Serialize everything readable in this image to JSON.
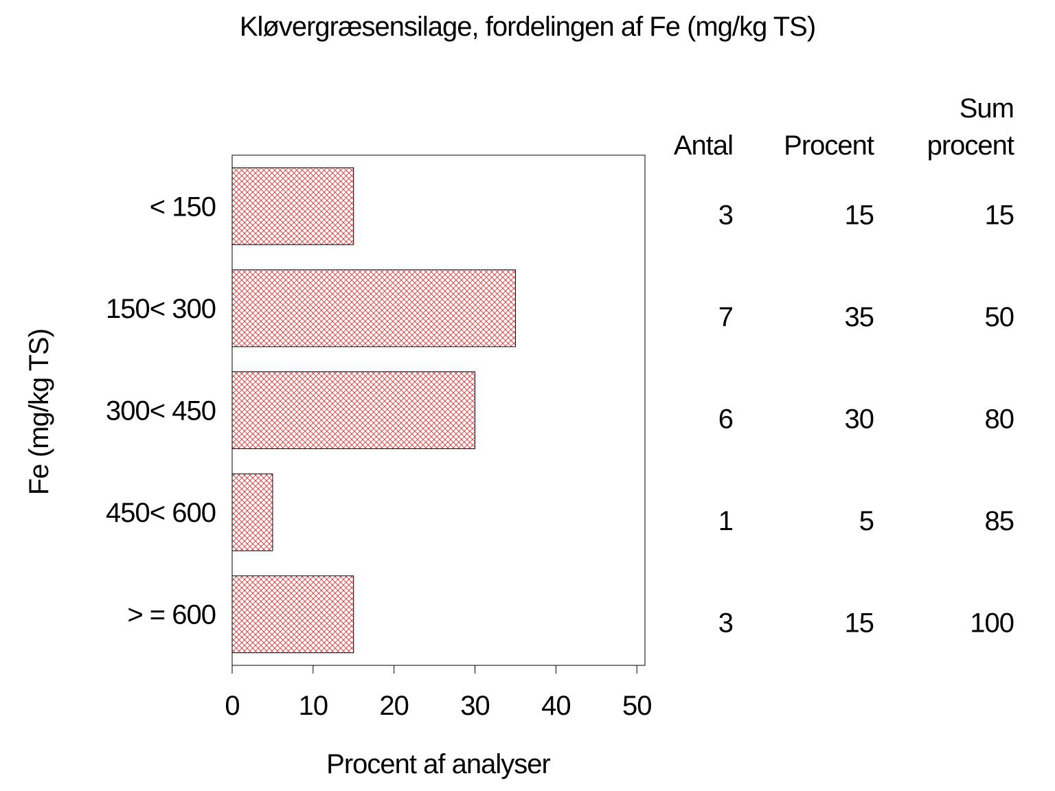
{
  "chart_data": {
    "type": "bar",
    "orientation": "horizontal",
    "title": "Kløvergræsensilage, fordelingen af Fe (mg/kg TS)",
    "x_label": "Procent af analyser",
    "y_label": "Fe (mg/kg TS)",
    "categories": [
      "< 150",
      "150< 300",
      "300< 450",
      "450< 600",
      "> = 600"
    ],
    "values": [
      15,
      35,
      30,
      5,
      15
    ],
    "color": "#e03030",
    "xlim": [
      0,
      51
    ],
    "xticks": [
      0,
      10,
      20,
      30,
      40,
      50
    ],
    "table": {
      "columns": [
        "Antal",
        "Procent",
        "Sum procent"
      ],
      "antal": [
        3,
        7,
        6,
        1,
        3
      ],
      "sum_procent": [
        15,
        50,
        80,
        85,
        100
      ]
    }
  }
}
